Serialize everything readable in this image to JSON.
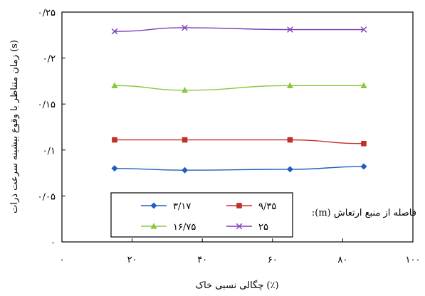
{
  "chart_data": {
    "type": "line",
    "title": "",
    "xlabel": "چگالی نسبی خاک (٪)",
    "ylabel": "زمان متناظر با وقوع بیشینه سرعت ذرات (s)",
    "xlim": [
      0,
      100
    ],
    "ylim": [
      0,
      0.25
    ],
    "grid": false,
    "legend_position": "bottom-center",
    "legend_title": ":(m) فاصله از منبع ارتعاش",
    "x_tick_labels": [
      "۰",
      "۲۰",
      "۴۰",
      "۶۰",
      "۸۰",
      "۱۰۰"
    ],
    "y_tick_labels": [
      "۰",
      "۰/۰۵",
      "۰/۱",
      "۰/۱۵",
      "۰/۲",
      "۰/۲۵"
    ],
    "x": [
      15,
      35,
      65,
      86
    ],
    "series": [
      {
        "name": "۳/۱۷",
        "color": "#1f5fbf",
        "marker": "diamond",
        "values": [
          0.08,
          0.078,
          0.079,
          0.082
        ]
      },
      {
        "name": "۹/۳۵",
        "color": "#c0302b",
        "marker": "square",
        "values": [
          0.111,
          0.111,
          0.111,
          0.107
        ]
      },
      {
        "name": "۱۶/۷۵",
        "color": "#8cc63f",
        "marker": "triangle",
        "values": [
          0.17,
          0.165,
          0.17,
          0.17
        ]
      },
      {
        "name": "۲۵",
        "color": "#7b3fb5",
        "marker": "x",
        "values": [
          0.229,
          0.233,
          0.231,
          0.231
        ]
      }
    ]
  }
}
